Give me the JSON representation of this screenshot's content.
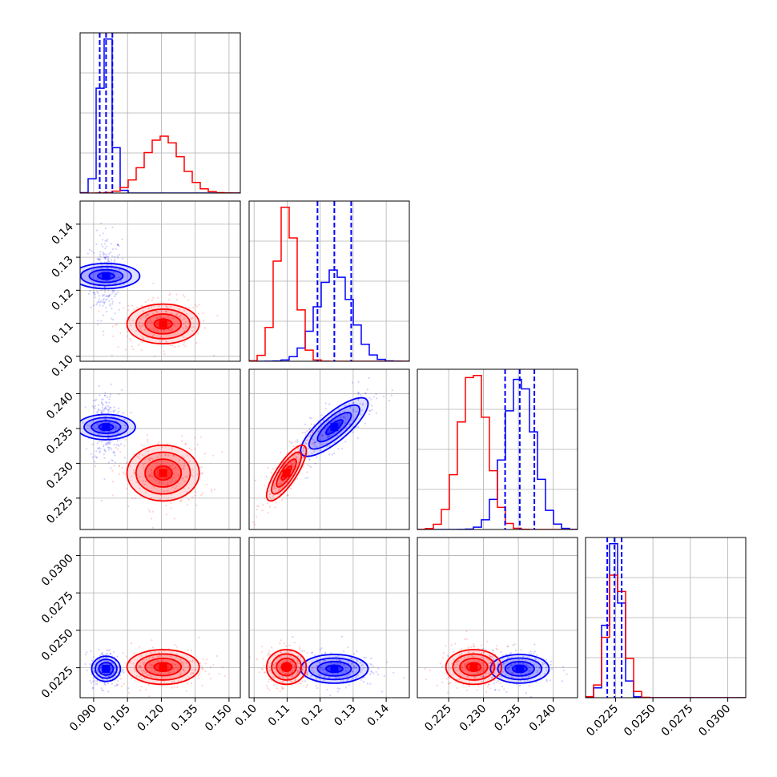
{
  "colors": {
    "blue": "#0000ff",
    "red": "#ff0000",
    "grid": "#b0b0b0"
  },
  "chart_data": {
    "type": "corner",
    "parameters": 4,
    "grid": true,
    "axes": [
      {
        "lim": [
          0.084,
          0.155
        ],
        "ticks": [
          0.09,
          0.105,
          0.12,
          0.135,
          0.15
        ],
        "tick_labels": [
          "0.090",
          "0.105",
          "0.120",
          "0.135",
          "0.150"
        ]
      },
      {
        "lim": [
          0.0985,
          0.147
        ],
        "ticks": [
          0.1,
          0.11,
          0.12,
          0.13,
          0.14
        ],
        "tick_labels": [
          "0.10",
          "0.11",
          "0.12",
          "0.13",
          "0.14"
        ]
      },
      {
        "lim": [
          0.2205,
          0.2435
        ],
        "ticks": [
          0.225,
          0.23,
          0.235,
          0.24
        ],
        "tick_labels": [
          "0.225",
          "0.230",
          "0.235",
          "0.240"
        ]
      },
      {
        "lim": [
          0.0205,
          0.0312
        ],
        "ticks": [
          0.0225,
          0.025,
          0.0275,
          0.03
        ],
        "tick_labels": [
          "0.0225",
          "0.0250",
          "0.0275",
          "0.0300"
        ]
      }
    ],
    "series": [
      {
        "color": "blue",
        "means": [
          0.0955,
          0.1243,
          0.2352,
          0.02243
        ],
        "sds": [
          0.0028,
          0.0051,
          0.0021,
          0.00048
        ]
      },
      {
        "color": "red",
        "means": [
          0.1208,
          0.1098,
          0.2286,
          0.02255
        ],
        "sds": [
          0.008,
          0.003,
          0.002,
          0.00058
        ]
      }
    ],
    "correlations": {
      "blue_1_2": 0.8,
      "red_1_2": 0.8
    },
    "quantile_lines": [
      [
        0.0927,
        0.0955,
        0.0983
      ],
      [
        0.1192,
        0.1243,
        0.1294
      ],
      [
        0.2331,
        0.2352,
        0.2373
      ],
      [
        0.02195,
        0.02243,
        0.02291
      ]
    ]
  }
}
